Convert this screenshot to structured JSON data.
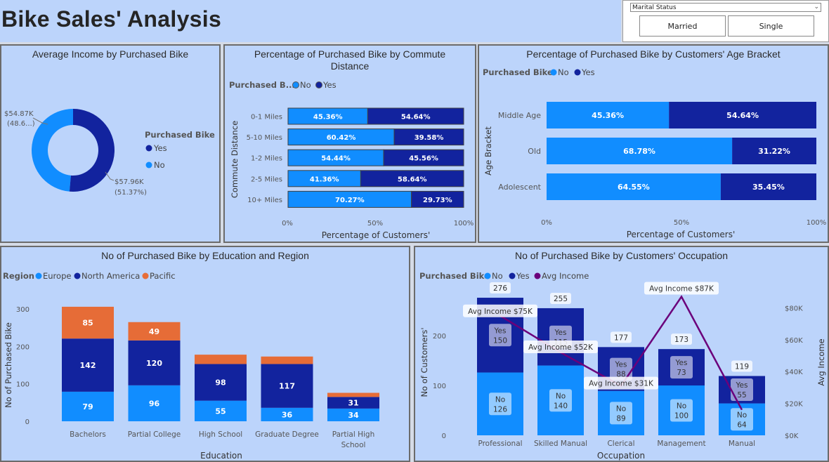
{
  "title": "Bike Sales' Analysis",
  "slicer": {
    "label": "Marital Status",
    "options": [
      "Married",
      "Single"
    ]
  },
  "colors": {
    "no": "#118dff",
    "yes": "#12239e",
    "pacific": "#e66c37",
    "avg_income": "#6b007b",
    "panel_bg": "#bcd4fb"
  },
  "panels": {
    "donut": {
      "title": "Average Income by Purchased Bike",
      "legend_title": "Purchased Bike",
      "legend": [
        "Yes",
        "No"
      ],
      "label_no": "$54.87K",
      "label_no_pct": "(48.6...)",
      "label_yes": "$57.96K",
      "label_yes_pct": "(51.37%)"
    },
    "commute": {
      "title_line1": "Percentage of Purchased Bike by Commute",
      "title_line2": "Distance",
      "legend_title": "Purchased B...",
      "legend": [
        "No",
        "Yes"
      ],
      "ylabel": "Commute Distance",
      "xlabel": "Percentage of Customers'",
      "ticks": [
        "0%",
        "50%",
        "100%"
      ]
    },
    "age": {
      "title": "Percentage of Purchased Bike by Customers' Age Bracket",
      "legend_title": "Purchased Bike",
      "legend": [
        "No",
        "Yes"
      ],
      "ylabel": "Age Bracket",
      "xlabel": "Percentage of Customers'",
      "ticks": [
        "0%",
        "50%",
        "100%"
      ]
    },
    "education": {
      "title": "No of Purchased Bike by Education and Region",
      "legend_title": "Region",
      "legend": [
        "Europe",
        "North America",
        "Pacific"
      ],
      "ylabel": "No of Purchased Bike",
      "xlabel": "Education",
      "yticks": [
        "0",
        "100",
        "200",
        "300"
      ]
    },
    "occupation": {
      "title": "No of Purchased Bike by Customers' Occupation",
      "legend_title": "Purchased Bike",
      "legend": [
        "No",
        "Yes",
        "Avg Income"
      ],
      "ylabel": "No of Customers'",
      "y2label": "Avg Income",
      "xlabel": "Occupation",
      "yticks": [
        "0",
        "100",
        "200"
      ],
      "y2ticks": [
        "$0K",
        "$20K",
        "$40K",
        "$60K",
        "$80K"
      ]
    }
  },
  "chart_data": [
    {
      "type": "pie",
      "title": "Average Income by Purchased Bike",
      "categories": [
        "No",
        "Yes"
      ],
      "values": [
        54.87,
        57.96
      ],
      "unit": "$K",
      "percent_labels": [
        "48.6...",
        "51.37%"
      ]
    },
    {
      "type": "bar",
      "title": "Percentage of Purchased Bike by Commute Distance",
      "orientation": "horizontal",
      "stacked": "100%",
      "categories": [
        "0-1 Miles",
        "5-10 Miles",
        "1-2 Miles",
        "2-5 Miles",
        "10+ Miles"
      ],
      "series": [
        {
          "name": "No",
          "values": [
            45.36,
            60.42,
            54.44,
            41.36,
            70.27
          ]
        },
        {
          "name": "Yes",
          "values": [
            54.64,
            39.58,
            45.56,
            58.64,
            29.73
          ]
        }
      ],
      "xlabel": "Percentage of Customers'",
      "ylabel": "Commute Distance",
      "xlim": [
        0,
        100
      ]
    },
    {
      "type": "bar",
      "title": "Percentage of Purchased Bike by Customers' Age Bracket",
      "orientation": "horizontal",
      "stacked": "100%",
      "categories": [
        "Middle Age",
        "Old",
        "Adolescent"
      ],
      "series": [
        {
          "name": "No",
          "values": [
            45.36,
            68.78,
            64.55
          ]
        },
        {
          "name": "Yes",
          "values": [
            54.64,
            31.22,
            35.45
          ]
        }
      ],
      "xlabel": "Percentage of Customers'",
      "ylabel": "Age Bracket",
      "xlim": [
        0,
        100
      ]
    },
    {
      "type": "bar",
      "title": "No of Purchased Bike by Education and Region",
      "stacked": true,
      "categories": [
        "Bachelors",
        "Partial College",
        "High School",
        "Graduate Degree",
        "Partial High School"
      ],
      "series": [
        {
          "name": "Europe",
          "values": [
            79,
            96,
            55,
            36,
            34
          ]
        },
        {
          "name": "North America",
          "values": [
            142,
            120,
            98,
            117,
            31
          ]
        },
        {
          "name": "Pacific",
          "values": [
            85,
            49,
            25,
            20,
            11
          ]
        }
      ],
      "shown_labels": {
        "Pacific": [
          true,
          true,
          false,
          false,
          false
        ]
      },
      "xlabel": "Education",
      "ylabel": "No of Purchased Bike",
      "ylim": [
        0,
        330
      ]
    },
    {
      "type": "bar",
      "title": "No of Purchased Bike by Customers' Occupation",
      "stacked": true,
      "combo_line": "Avg Income",
      "categories": [
        "Professional",
        "Skilled Manual",
        "Clerical",
        "Management",
        "Manual"
      ],
      "series": [
        {
          "name": "No",
          "values": [
            126,
            140,
            89,
            100,
            64
          ]
        },
        {
          "name": "Yes",
          "values": [
            150,
            115,
            88,
            73,
            55
          ]
        }
      ],
      "totals": [
        276,
        255,
        177,
        173,
        119
      ],
      "line": {
        "name": "Avg Income",
        "values": [
          75,
          52,
          31,
          87,
          16
        ],
        "labels": [
          "Avg Income $75K",
          "Avg Income $52K",
          "Avg Income $31K",
          "Avg Income $87K",
          ""
        ]
      },
      "xlabel": "Occupation",
      "ylabel": "No of Customers'",
      "y2label": "Avg Income",
      "ylim": [
        0,
        280
      ],
      "y2lim": [
        0,
        90
      ]
    }
  ]
}
